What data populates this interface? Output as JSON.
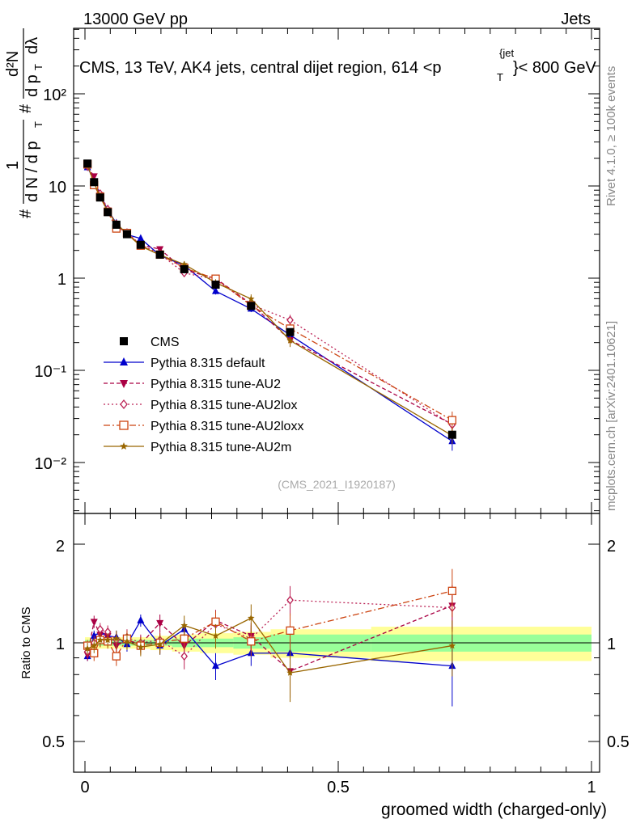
{
  "header": {
    "left": "13000 GeV pp",
    "right": "Jets"
  },
  "title": {
    "main": "CMS, 13 TeV, AK4 jets, central dijet region, 614 <p",
    "sub_T": "T",
    "sup_jet": "{jet",
    "tail": "}< 800 GeV"
  },
  "side": {
    "rivet": "Rivet 4.1.0, ≥ 100k events",
    "mcplots": "mcplots.cern.ch [arXiv:2401.10621]"
  },
  "analysis_id": "(CMS_2021_I1920187)",
  "axes": {
    "xlabel": "groomed width (charged-only)",
    "ylabel_top": "# 1/(dN/dp_T) # d²N/(dp_T dλ)",
    "ylabel_top_parts": {
      "hash1": "#",
      "one": "1",
      "denom": "d N / d p",
      "sub_T1": "T",
      "hash2": "#",
      "num": "d²N",
      "denom2": "d p",
      "sub_T2": "T",
      "lam": "dλ"
    },
    "ylabel_ratio": "Ratio to CMS",
    "x_ticks": [
      "0",
      "0.5",
      "1"
    ],
    "y_ticks_top": [
      "10⁻²",
      "10⁻¹",
      "1",
      "10",
      "10²"
    ],
    "y_ticks_ratio": [
      "0.5",
      "1",
      "2"
    ]
  },
  "legend": [
    {
      "label": "CMS",
      "color": "#000000"
    },
    {
      "label": "Pythia 8.315 default",
      "color": "#0000cc"
    },
    {
      "label": "Pythia 8.315 tune-AU2",
      "color": "#aa0044"
    },
    {
      "label": "Pythia 8.315 tune-AU2lox",
      "color": "#bb2255"
    },
    {
      "label": "Pythia 8.315 tune-AU2loxx",
      "color": "#cc4411"
    },
    {
      "label": "Pythia 8.315 tune-AU2m",
      "color": "#996600"
    }
  ],
  "chart_data": {
    "type": "scatter",
    "title": "CMS, 13 TeV, AK4 jets, central dijet region, 614 < pT jet < 800 GeV",
    "xlabel": "groomed width (charged-only)",
    "ylabel": "1/(dN/dpT) d²N/(dpT dλ)",
    "xlim": [
      0,
      1
    ],
    "ylim_top": [
      0.003,
      300
    ],
    "yscale_top": "log",
    "ylim_ratio": [
      0.4,
      2.3
    ],
    "x": [
      0.005,
      0.018,
      0.03,
      0.045,
      0.062,
      0.083,
      0.11,
      0.148,
      0.196,
      0.258,
      0.328,
      0.405,
      0.725
    ],
    "cms": {
      "name": "CMS",
      "values": [
        17.5,
        11.0,
        7.5,
        5.2,
        3.8,
        3.0,
        2.3,
        1.8,
        1.25,
        0.85,
        0.5,
        0.26,
        0.02
      ],
      "band_inner": [
        0.02,
        0.02,
        0.02,
        0.02,
        0.02,
        0.02,
        0.02,
        0.02,
        0.03,
        0.03,
        0.04,
        0.06,
        0.06
      ],
      "band_outer": [
        0.04,
        0.04,
        0.04,
        0.04,
        0.04,
        0.04,
        0.04,
        0.05,
        0.06,
        0.07,
        0.08,
        0.1,
        0.12
      ]
    },
    "series": [
      {
        "name": "Pythia 8.315 default",
        "marker": "triangle-up",
        "dash": "",
        "color": "#0000cc",
        "ratio": [
          0.91,
          1.05,
          1.08,
          1.05,
          1.04,
          0.99,
          1.17,
          0.98,
          1.1,
          0.85,
          0.93,
          0.93,
          0.85
        ],
        "ratio_err": [
          0.03,
          0.04,
          0.04,
          0.04,
          0.05,
          0.05,
          0.05,
          0.06,
          0.07,
          0.08,
          0.08,
          0.1,
          0.21
        ]
      },
      {
        "name": "Pythia 8.315 tune-AU2",
        "marker": "triangle-down",
        "dash": "5,3",
        "color": "#aa0044",
        "ratio": [
          0.92,
          1.16,
          1.06,
          1.05,
          0.98,
          1.02,
          0.99,
          1.15,
          0.98,
          1.17,
          1.05,
          0.82,
          1.3
        ],
        "ratio_err": [
          0.04,
          0.05,
          0.05,
          0.05,
          0.06,
          0.06,
          0.06,
          0.07,
          0.08,
          0.09,
          0.1,
          0.14,
          0.2
        ]
      },
      {
        "name": "Pythia 8.315 tune-AU2lox",
        "marker": "diamond-open",
        "dash": "2,3",
        "color": "#bb2255",
        "ratio": [
          0.94,
          1.0,
          1.1,
          1.08,
          1.02,
          1.04,
          1.0,
          1.02,
          0.91,
          1.14,
          1.03,
          1.35,
          1.28
        ],
        "ratio_err": [
          0.04,
          0.05,
          0.05,
          0.05,
          0.06,
          0.06,
          0.06,
          0.07,
          0.08,
          0.09,
          0.1,
          0.14,
          0.2
        ]
      },
      {
        "name": "Pythia 8.315 tune-AU2loxx",
        "marker": "square-open",
        "dash": "8,3,2,3",
        "color": "#cc4411",
        "ratio": [
          0.98,
          0.93,
          1.02,
          1.01,
          0.91,
          1.03,
          0.98,
          1.0,
          1.03,
          1.16,
          1.01,
          1.09,
          1.44
        ],
        "ratio_err": [
          0.04,
          0.05,
          0.05,
          0.05,
          0.06,
          0.06,
          0.06,
          0.07,
          0.08,
          0.09,
          0.1,
          0.14,
          0.24
        ]
      },
      {
        "name": "Pythia 8.315 tune-AU2m",
        "marker": "star",
        "dash": "",
        "color": "#996600",
        "ratio": [
          0.96,
          0.98,
          1.02,
          1.02,
          1.03,
          1.01,
          0.97,
          0.99,
          1.13,
          1.05,
          1.19,
          0.81,
          0.98
        ],
        "ratio_err": [
          0.04,
          0.05,
          0.05,
          0.05,
          0.06,
          0.06,
          0.06,
          0.07,
          0.08,
          0.09,
          0.12,
          0.15,
          0.19
        ]
      }
    ]
  }
}
